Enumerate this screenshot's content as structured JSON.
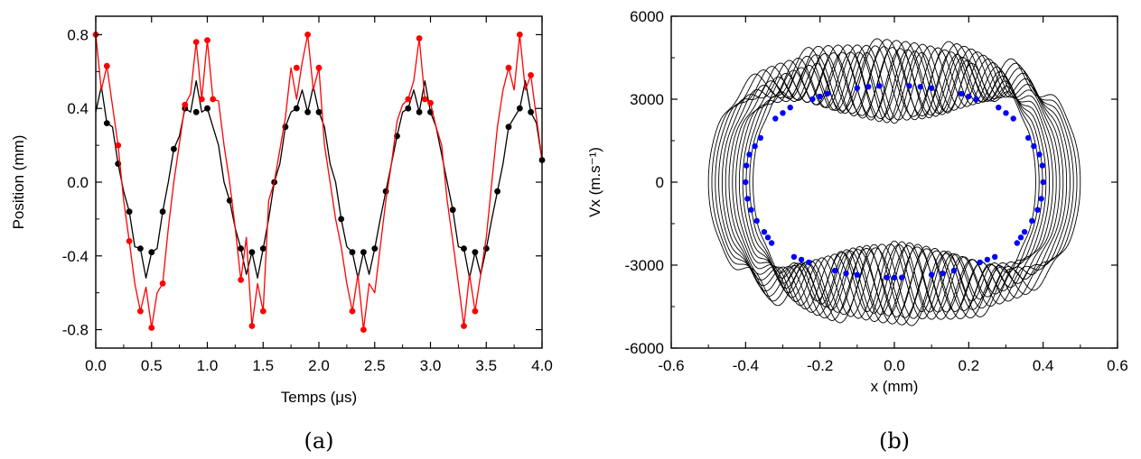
{
  "chart_data": [
    {
      "type": "line",
      "panel_label": "(a)",
      "xlabel": "Temps (μs)",
      "ylabel": "Position (mm)",
      "xlim": [
        0.0,
        4.0
      ],
      "ylim": [
        -0.9,
        0.9
      ],
      "xticks": [
        "0.0",
        "0.5",
        "1.0",
        "1.5",
        "2.0",
        "2.5",
        "3.0",
        "3.5",
        "4.0"
      ],
      "yticks": [
        "-0.8",
        "-0.4",
        "0.0",
        "0.4",
        "0.8"
      ],
      "grid": false,
      "legend": "none",
      "series": [
        {
          "color": "#ff0000",
          "x": [
            0.0,
            0.05,
            0.1,
            0.2,
            0.25,
            0.3,
            0.35,
            0.4,
            0.45,
            0.5,
            0.55,
            0.6,
            0.65,
            0.7,
            0.8,
            0.85,
            0.9,
            0.95,
            1.0,
            1.05,
            1.1,
            1.15,
            1.2,
            1.25,
            1.3,
            1.35,
            1.4,
            1.45,
            1.5,
            1.55,
            1.6,
            1.7,
            1.75,
            1.8,
            1.85,
            1.9,
            1.95,
            2.0,
            2.05,
            2.1,
            2.15,
            2.2,
            2.25,
            2.3,
            2.35,
            2.4,
            2.45,
            2.5,
            2.6,
            2.65,
            2.7,
            2.75,
            2.8,
            2.85,
            2.9,
            2.95,
            3.0,
            3.05,
            3.1,
            3.15,
            3.2,
            3.25,
            3.3,
            3.35,
            3.4,
            3.5,
            3.55,
            3.6,
            3.65,
            3.7,
            3.75,
            3.8,
            3.85,
            3.9,
            3.95,
            4.0
          ],
          "y": [
            0.8,
            0.5,
            0.63,
            0.2,
            -0.1,
            -0.32,
            -0.55,
            -0.7,
            -0.57,
            -0.79,
            -0.6,
            -0.55,
            -0.25,
            0.0,
            0.42,
            0.48,
            0.76,
            0.45,
            0.77,
            0.45,
            0.44,
            0.2,
            0.0,
            -0.25,
            -0.53,
            -0.3,
            -0.78,
            -0.55,
            -0.7,
            -0.1,
            0.0,
            0.35,
            0.62,
            0.45,
            0.65,
            0.8,
            0.5,
            0.62,
            0.2,
            0.0,
            -0.2,
            -0.35,
            -0.55,
            -0.7,
            -0.5,
            -0.8,
            -0.55,
            -0.6,
            -0.1,
            0.1,
            0.33,
            0.42,
            0.45,
            0.55,
            0.78,
            0.45,
            0.43,
            0.3,
            0.2,
            -0.1,
            -0.32,
            -0.55,
            -0.78,
            -0.5,
            -0.7,
            -0.3,
            0.0,
            0.3,
            0.5,
            0.62,
            0.5,
            0.8,
            0.5,
            0.58,
            0.35,
            0.12
          ],
          "markers_x": [
            0.0,
            0.1,
            0.2,
            0.3,
            0.4,
            0.5,
            0.6,
            0.8,
            0.9,
            0.95,
            1.0,
            1.05,
            1.3,
            1.4,
            1.5,
            1.8,
            1.9,
            2.0,
            2.3,
            2.4,
            2.8,
            2.9,
            2.95,
            3.0,
            3.3,
            3.4,
            3.7,
            3.8,
            3.9
          ],
          "markers_y": [
            0.8,
            0.63,
            0.2,
            -0.32,
            -0.7,
            -0.79,
            -0.55,
            0.42,
            0.76,
            0.45,
            0.77,
            0.45,
            -0.53,
            -0.78,
            -0.7,
            0.62,
            0.8,
            0.62,
            -0.7,
            -0.8,
            0.45,
            0.78,
            0.45,
            0.43,
            -0.78,
            -0.7,
            0.62,
            0.8,
            0.58
          ]
        },
        {
          "color": "#000000",
          "x": [
            0.0,
            0.05,
            0.1,
            0.15,
            0.2,
            0.25,
            0.3,
            0.35,
            0.4,
            0.45,
            0.5,
            0.55,
            0.6,
            0.65,
            0.7,
            0.75,
            0.8,
            0.85,
            0.9,
            0.95,
            1.0,
            1.05,
            1.1,
            1.15,
            1.2,
            1.25,
            1.3,
            1.35,
            1.4,
            1.45,
            1.5,
            1.55,
            1.6,
            1.65,
            1.7,
            1.75,
            1.8,
            1.85,
            1.9,
            1.95,
            2.0,
            2.05,
            2.1,
            2.15,
            2.2,
            2.25,
            2.3,
            2.35,
            2.4,
            2.45,
            2.5,
            2.55,
            2.6,
            2.65,
            2.7,
            2.75,
            2.8,
            2.85,
            2.9,
            2.95,
            3.0,
            3.05,
            3.1,
            3.15,
            3.2,
            3.25,
            3.3,
            3.35,
            3.4,
            3.45,
            3.5,
            3.55,
            3.6,
            3.65,
            3.7,
            3.75,
            3.8,
            3.85,
            3.9,
            3.95,
            4.0
          ],
          "y": [
            0.38,
            0.52,
            0.32,
            0.3,
            0.1,
            -0.05,
            -0.16,
            -0.35,
            -0.36,
            -0.52,
            -0.38,
            -0.36,
            -0.16,
            0.0,
            0.18,
            0.25,
            0.4,
            0.38,
            0.55,
            0.38,
            0.4,
            0.3,
            0.2,
            0.0,
            -0.1,
            -0.25,
            -0.36,
            -0.5,
            -0.38,
            -0.52,
            -0.36,
            -0.2,
            0.0,
            0.1,
            0.3,
            0.38,
            0.4,
            0.5,
            0.38,
            0.52,
            0.38,
            0.3,
            0.1,
            0.0,
            -0.2,
            -0.35,
            -0.38,
            -0.52,
            -0.38,
            -0.5,
            -0.36,
            -0.2,
            -0.05,
            0.1,
            0.25,
            0.38,
            0.4,
            0.5,
            0.38,
            0.55,
            0.38,
            0.3,
            0.15,
            0.0,
            -0.15,
            -0.35,
            -0.36,
            -0.52,
            -0.38,
            -0.5,
            -0.36,
            -0.2,
            -0.05,
            0.1,
            0.3,
            0.35,
            0.4,
            0.55,
            0.38,
            0.32,
            0.12
          ],
          "markers_x": [
            0.1,
            0.2,
            0.3,
            0.4,
            0.5,
            0.6,
            0.7,
            0.8,
            0.9,
            1.0,
            1.2,
            1.3,
            1.4,
            1.5,
            1.6,
            1.7,
            1.8,
            1.9,
            2.0,
            2.2,
            2.3,
            2.4,
            2.5,
            2.6,
            2.7,
            2.8,
            2.9,
            3.0,
            3.2,
            3.3,
            3.4,
            3.5,
            3.6,
            3.7,
            3.8,
            3.9,
            4.0
          ],
          "markers_y": [
            0.32,
            0.1,
            -0.16,
            -0.36,
            -0.38,
            -0.16,
            0.18,
            0.4,
            0.38,
            0.4,
            -0.1,
            -0.36,
            -0.38,
            -0.36,
            0.0,
            0.3,
            0.4,
            0.38,
            0.38,
            -0.2,
            -0.38,
            -0.38,
            -0.36,
            -0.05,
            0.25,
            0.4,
            0.38,
            0.38,
            -0.15,
            -0.36,
            -0.38,
            -0.36,
            -0.05,
            0.3,
            0.4,
            0.38,
            0.12
          ]
        }
      ]
    },
    {
      "type": "line",
      "panel_label": "(b)",
      "xlabel": "x (mm)",
      "ylabel": "Vx (m.s⁻¹)",
      "xlim": [
        -0.6,
        0.6
      ],
      "ylim": [
        -6000,
        6000
      ],
      "xticks": [
        "-0.6",
        "-0.4",
        "-0.2",
        "0.0",
        "0.2",
        "0.4",
        "0.6"
      ],
      "yticks": [
        "-6000",
        "-3000",
        "0",
        "3000",
        "6000"
      ],
      "grid": false,
      "legend": "none",
      "curve_color": "#000000",
      "marker_color": "#0000ff",
      "trajectory": {
        "orbit_count": 14,
        "x_amplitude_min": 0.38,
        "x_amplitude_max": 0.5,
        "v_amplitude": 5200,
        "micromotion_ratio": 16,
        "micromotion_depth": 0.55
      },
      "markers": [
        {
          "x": -0.4,
          "y": 0
        },
        {
          "x": -0.398,
          "y": 600
        },
        {
          "x": -0.395,
          "y": -600
        },
        {
          "x": -0.39,
          "y": 1000
        },
        {
          "x": -0.385,
          "y": -1000
        },
        {
          "x": -0.375,
          "y": 1300
        },
        {
          "x": -0.37,
          "y": -1400
        },
        {
          "x": -0.36,
          "y": 1600
        },
        {
          "x": -0.35,
          "y": -1800
        },
        {
          "x": -0.34,
          "y": -2000
        },
        {
          "x": -0.33,
          "y": -2200
        },
        {
          "x": -0.32,
          "y": 2300
        },
        {
          "x": -0.3,
          "y": 2500
        },
        {
          "x": -0.28,
          "y": 2700
        },
        {
          "x": -0.27,
          "y": -2700
        },
        {
          "x": -0.25,
          "y": -2800
        },
        {
          "x": -0.23,
          "y": -2900
        },
        {
          "x": -0.22,
          "y": 3000
        },
        {
          "x": -0.2,
          "y": 3100
        },
        {
          "x": -0.18,
          "y": 3200
        },
        {
          "x": -0.16,
          "y": -3200
        },
        {
          "x": -0.13,
          "y": -3300
        },
        {
          "x": -0.1,
          "y": -3350
        },
        {
          "x": -0.1,
          "y": 3400
        },
        {
          "x": -0.07,
          "y": 3450
        },
        {
          "x": -0.04,
          "y": 3480
        },
        {
          "x": -0.02,
          "y": -3450
        },
        {
          "x": 0.0,
          "y": -3450
        },
        {
          "x": 0.02,
          "y": -3450
        },
        {
          "x": 0.04,
          "y": 3480
        },
        {
          "x": 0.07,
          "y": 3450
        },
        {
          "x": 0.1,
          "y": 3400
        },
        {
          "x": 0.1,
          "y": -3350
        },
        {
          "x": 0.13,
          "y": -3300
        },
        {
          "x": 0.16,
          "y": -3200
        },
        {
          "x": 0.18,
          "y": 3200
        },
        {
          "x": 0.2,
          "y": 3100
        },
        {
          "x": 0.22,
          "y": 3000
        },
        {
          "x": 0.23,
          "y": -2900
        },
        {
          "x": 0.25,
          "y": -2800
        },
        {
          "x": 0.27,
          "y": -2700
        },
        {
          "x": 0.28,
          "y": 2700
        },
        {
          "x": 0.3,
          "y": 2500
        },
        {
          "x": 0.32,
          "y": 2300
        },
        {
          "x": 0.33,
          "y": -2200
        },
        {
          "x": 0.34,
          "y": -2000
        },
        {
          "x": 0.35,
          "y": -1800
        },
        {
          "x": 0.36,
          "y": 1600
        },
        {
          "x": 0.37,
          "y": -1400
        },
        {
          "x": 0.375,
          "y": 1300
        },
        {
          "x": 0.385,
          "y": -1000
        },
        {
          "x": 0.39,
          "y": 1000
        },
        {
          "x": 0.395,
          "y": -600
        },
        {
          "x": 0.398,
          "y": 600
        },
        {
          "x": 0.4,
          "y": 0
        }
      ]
    }
  ]
}
